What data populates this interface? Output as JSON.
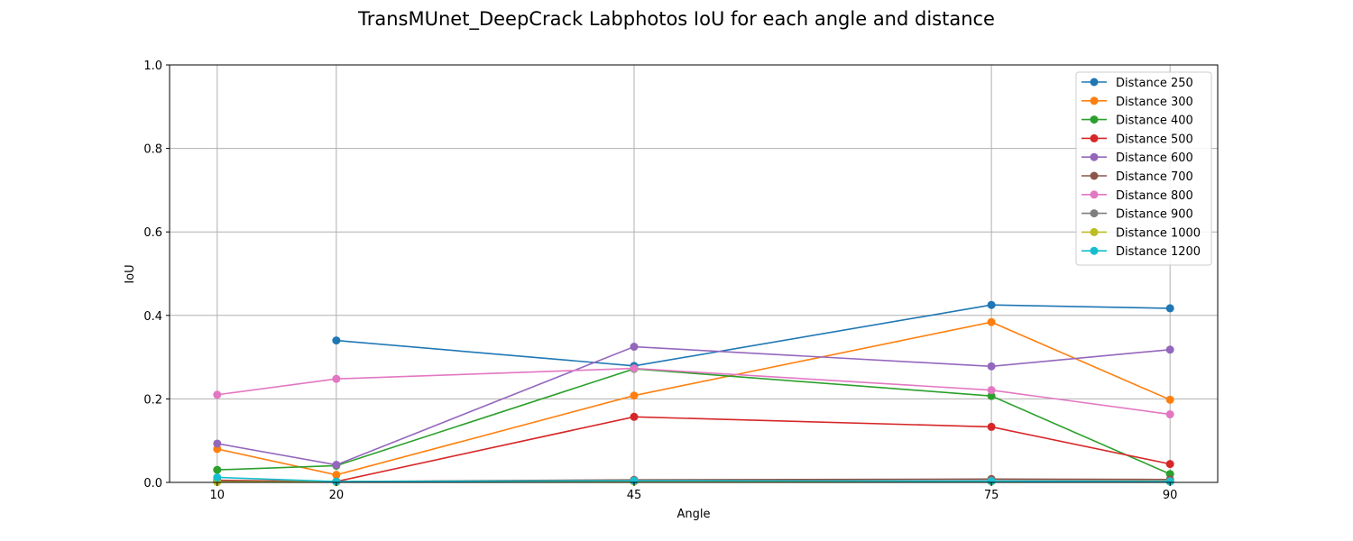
{
  "chart_data": {
    "type": "line",
    "title": "TransMUnet_DeepCrack Labphotos IoU for each angle and distance",
    "xlabel": "Angle",
    "ylabel": "IoU",
    "xticks": [
      "10",
      "20",
      "45",
      "75",
      "90"
    ],
    "yticks": [
      "0.0",
      "0.2",
      "0.4",
      "0.6",
      "0.8",
      "1.0"
    ],
    "xlim": [
      6,
      94
    ],
    "ylim": [
      0,
      1
    ],
    "grid": true,
    "legend_position": "top-right",
    "series": [
      {
        "name": "Distance 250",
        "color": "#1f77b4",
        "x": [
          20,
          45,
          75,
          90
        ],
        "y": [
          0.34,
          0.279,
          0.425,
          0.417
        ]
      },
      {
        "name": "Distance 300",
        "color": "#ff7f0e",
        "x": [
          10,
          20,
          45,
          75,
          90
        ],
        "y": [
          0.08,
          0.018,
          0.208,
          0.384,
          0.198
        ]
      },
      {
        "name": "Distance 400",
        "color": "#2ca02c",
        "x": [
          10,
          20,
          45,
          75,
          90
        ],
        "y": [
          0.03,
          0.04,
          0.272,
          0.207,
          0.02
        ]
      },
      {
        "name": "Distance 500",
        "color": "#d62728",
        "x": [
          10,
          20,
          45,
          75,
          90
        ],
        "y": [
          0.005,
          0.002,
          0.157,
          0.133,
          0.044
        ]
      },
      {
        "name": "Distance 600",
        "color": "#9467bd",
        "x": [
          10,
          20,
          45,
          75,
          90
        ],
        "y": [
          0.093,
          0.042,
          0.325,
          0.278,
          0.318
        ]
      },
      {
        "name": "Distance 700",
        "color": "#8c564b",
        "x": [
          10,
          20,
          45,
          75,
          90
        ],
        "y": [
          0.003,
          0.002,
          0.006,
          0.008,
          0.007
        ]
      },
      {
        "name": "Distance 800",
        "color": "#e377c2",
        "x": [
          10,
          20,
          45,
          75,
          90
        ],
        "y": [
          0.21,
          0.248,
          0.273,
          0.221,
          0.163
        ]
      },
      {
        "name": "Distance 900",
        "color": "#7f7f7f",
        "x": [
          10,
          20,
          45,
          75,
          90
        ],
        "y": [
          0.002,
          0.001,
          0.003,
          0.004,
          0.003
        ]
      },
      {
        "name": "Distance 1000",
        "color": "#bcbd22",
        "x": [
          10,
          20,
          45,
          75,
          90
        ],
        "y": [
          0.001,
          0.001,
          0.002,
          0.002,
          0.002
        ]
      },
      {
        "name": "Distance 1200",
        "color": "#17becf",
        "x": [
          10,
          20,
          45,
          75,
          90
        ],
        "y": [
          0.012,
          0.002,
          0.004,
          0.003,
          0.002
        ]
      }
    ]
  }
}
